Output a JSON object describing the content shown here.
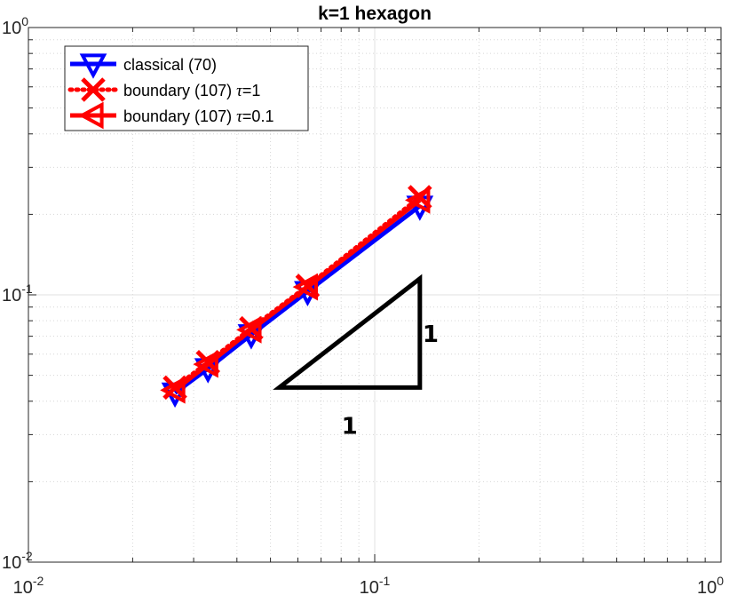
{
  "chart_data": {
    "type": "line",
    "title": "k=1 hexagon",
    "xlabel": "",
    "ylabel": "",
    "xscale": "log",
    "yscale": "log",
    "xlim": [
      0.01,
      1
    ],
    "ylim": [
      0.01,
      1
    ],
    "grid": true,
    "minor_grid": true,
    "legend_position": "top-left",
    "x_ticks": [
      {
        "base": "10",
        "exp": "-2",
        "value": 0.01
      },
      {
        "base": "10",
        "exp": "-1",
        "value": 0.1
      },
      {
        "base": "10",
        "exp": "0",
        "value": 1
      }
    ],
    "y_ticks": [
      {
        "base": "10",
        "exp": "-2",
        "value": 0.01
      },
      {
        "base": "10",
        "exp": "-1",
        "value": 0.1
      },
      {
        "base": "10",
        "exp": "0",
        "value": 1
      }
    ],
    "series": [
      {
        "name": "classical (70)",
        "color": "#0000ff",
        "line_style": "solid",
        "marker": "triangle-down",
        "x": [
          0.135,
          0.064,
          0.044,
          0.033,
          0.0265
        ],
        "y": [
          0.215,
          0.103,
          0.071,
          0.053,
          0.043
        ]
      },
      {
        "name": "boundary (107)",
        "name_suffix": "=1",
        "color": "#ff0000",
        "line_style": "dotted",
        "marker": "x",
        "x": [
          0.135,
          0.064,
          0.044,
          0.033,
          0.0265
        ],
        "y": [
          0.232,
          0.108,
          0.075,
          0.056,
          0.045
        ]
      },
      {
        "name": "boundary (107)",
        "name_suffix": "=0.1",
        "color": "#ff0000",
        "line_style": "solid",
        "marker": "triangle-left",
        "x": [
          0.135,
          0.064,
          0.044,
          0.033,
          0.0265
        ],
        "y": [
          0.226,
          0.107,
          0.074,
          0.055,
          0.044
        ]
      }
    ],
    "annotations": {
      "slope_triangle": {
        "vertices": [
          [
            0.053,
            0.045
          ],
          [
            0.135,
            0.045
          ],
          [
            0.135,
            0.115
          ]
        ],
        "color": "#000000",
        "horizontal_label": "1",
        "vertical_label": "1"
      }
    }
  }
}
